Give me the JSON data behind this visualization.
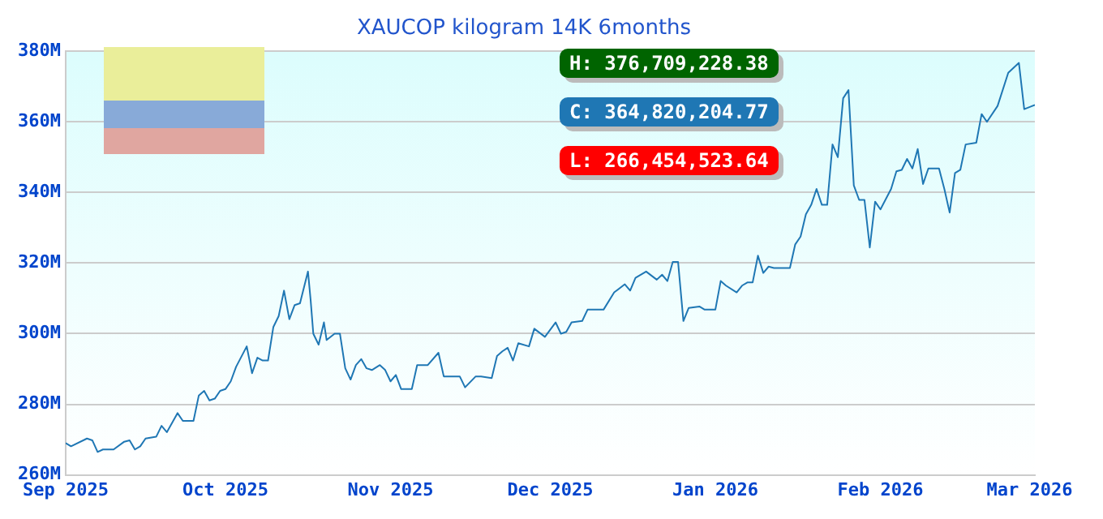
{
  "chart_data": {
    "type": "line",
    "title": "XAUCOP kilogram 14K 6months",
    "x": [
      "2025-09-01",
      "2025-09-02",
      "2025-09-05",
      "2025-09-06",
      "2025-09-07",
      "2025-09-08",
      "2025-09-10",
      "2025-09-12",
      "2025-09-13",
      "2025-09-14",
      "2025-09-15",
      "2025-09-16",
      "2025-09-18",
      "2025-09-19",
      "2025-09-20",
      "2025-09-22",
      "2025-09-23",
      "2025-09-25",
      "2025-09-26",
      "2025-09-27",
      "2025-09-28",
      "2025-09-29",
      "2025-09-30",
      "2025-10-01",
      "2025-10-02",
      "2025-10-03",
      "2025-10-05",
      "2025-10-06",
      "2025-10-07",
      "2025-10-08",
      "2025-10-09",
      "2025-10-10",
      "2025-10-11",
      "2025-10-12",
      "2025-10-13",
      "2025-10-14",
      "2025-10-15",
      "2025-10-16T12:00",
      "2025-10-17",
      "2025-10-17T12:00",
      "2025-10-18T12:00",
      "2025-10-19T12:00",
      "2025-10-20",
      "2025-10-21T12:00",
      "2025-10-22T12:00",
      "2025-10-23T12:00",
      "2025-10-24T12:00",
      "2025-10-25T12:00",
      "2025-10-26T12:00",
      "2025-10-27T12:00",
      "2025-10-28T12:00",
      "2025-10-30",
      "2025-10-31",
      "2025-11-01",
      "2025-11-02",
      "2025-11-03",
      "2025-11-05",
      "2025-11-06",
      "2025-11-08",
      "2025-11-10",
      "2025-11-11",
      "2025-11-14",
      "2025-11-15",
      "2025-11-17",
      "2025-11-18",
      "2025-11-20",
      "2025-11-21",
      "2025-11-22",
      "2025-11-23",
      "2025-11-24",
      "2025-11-25",
      "2025-11-27",
      "2025-11-28",
      "2025-11-30",
      "2025-12-02",
      "2025-12-03",
      "2025-12-04",
      "2025-12-05",
      "2025-12-07",
      "2025-12-08",
      "2025-12-11",
      "2025-12-13",
      "2025-12-15",
      "2025-12-16",
      "2025-12-17",
      "2025-12-19",
      "2025-12-21",
      "2025-12-22",
      "2025-12-23",
      "2025-12-24",
      "2025-12-25",
      "2025-12-26",
      "2025-12-27",
      "2025-12-29",
      "2025-12-30",
      "2026-01-01",
      "2026-01-02",
      "2026-01-03",
      "2026-01-05",
      "2026-01-06",
      "2026-01-07",
      "2026-01-08",
      "2026-01-09",
      "2026-01-10",
      "2026-01-11",
      "2026-01-12",
      "2026-01-15",
      "2026-01-16",
      "2026-01-17",
      "2026-01-18",
      "2026-01-19",
      "2026-01-20",
      "2026-01-21",
      "2026-01-22",
      "2026-01-23",
      "2026-01-24",
      "2026-01-25",
      "2026-01-26",
      "2026-01-27",
      "2026-01-28",
      "2026-01-29",
      "2026-01-30",
      "2026-01-31",
      "2026-02-01",
      "2026-02-03",
      "2026-02-04",
      "2026-02-05",
      "2026-02-06",
      "2026-02-07",
      "2026-02-08",
      "2026-02-09",
      "2026-02-10",
      "2026-02-12",
      "2026-02-13",
      "2026-02-14",
      "2026-02-15",
      "2026-02-16",
      "2026-02-17",
      "2026-02-19",
      "2026-02-20",
      "2026-02-21",
      "2026-02-23",
      "2026-02-25",
      "2026-02-27",
      "2026-02-28",
      "2026-03-02"
    ],
    "series": [
      {
        "color": "#1f77b4",
        "values": [
          269.0,
          268.1,
          270.3,
          269.8,
          266.5,
          267.2,
          267.2,
          269.4,
          269.8,
          267.2,
          268.1,
          270.3,
          270.8,
          273.9,
          272.1,
          277.5,
          275.3,
          275.3,
          282.5,
          283.8,
          281.1,
          281.6,
          283.8,
          284.3,
          286.5,
          290.6,
          296.4,
          288.8,
          293.2,
          292.4,
          292.4,
          301.9,
          305.0,
          312.2,
          304.1,
          308.1,
          308.6,
          317.6,
          309.5,
          300.0,
          296.9,
          303.2,
          298.2,
          300.0,
          300.0,
          290.2,
          287.0,
          291.1,
          292.8,
          290.2,
          289.7,
          291.1,
          289.7,
          286.5,
          288.3,
          284.3,
          284.3,
          291.1,
          291.1,
          294.6,
          287.9,
          287.9,
          284.8,
          287.9,
          287.9,
          287.4,
          293.7,
          295.0,
          296.0,
          292.4,
          297.3,
          296.4,
          301.4,
          299.1,
          303.2,
          300.0,
          300.5,
          303.2,
          303.6,
          306.8,
          306.8,
          311.7,
          314.0,
          312.2,
          315.8,
          317.6,
          315.3,
          316.7,
          314.9,
          320.3,
          320.3,
          303.6,
          307.3,
          307.7,
          306.8,
          306.8,
          314.9,
          313.6,
          311.7,
          313.6,
          314.5,
          314.5,
          322.1,
          317.2,
          319.0,
          318.6,
          318.6,
          325.3,
          327.5,
          333.8,
          336.5,
          341.0,
          336.5,
          336.5,
          353.6,
          350.0,
          366.7,
          369.0,
          342.0,
          337.9,
          337.9,
          324.4,
          337.4,
          335.2,
          341.0,
          346.0,
          346.4,
          349.5,
          346.8,
          352.3,
          342.4,
          346.8,
          346.8,
          341.0,
          334.3,
          345.5,
          346.4,
          353.6,
          354.1,
          362.2,
          360.0,
          364.5,
          373.9,
          376.7,
          363.6,
          364.8
        ]
      }
    ],
    "xlim": [
      "2025-09-01",
      "2026-03-02"
    ],
    "xticks": [
      {
        "value": "2025-09-01",
        "label": "Sep 2025"
      },
      {
        "value": "2025-10-01",
        "label": "Oct 2025"
      },
      {
        "value": "2025-11-01",
        "label": "Nov 2025"
      },
      {
        "value": "2025-12-01",
        "label": "Dec 2025"
      },
      {
        "value": "2026-01-01",
        "label": "Jan 2026"
      },
      {
        "value": "2026-02-01",
        "label": "Feb 2026"
      },
      {
        "value": "2026-03-01",
        "label": "Mar 2026"
      }
    ],
    "ylim": [
      260,
      380
    ],
    "yticks": [
      {
        "value": 260,
        "label": "260M"
      },
      {
        "value": 280,
        "label": "280M"
      },
      {
        "value": 300,
        "label": "300M"
      },
      {
        "value": 320,
        "label": "320M"
      },
      {
        "value": 340,
        "label": "340M"
      },
      {
        "value": 360,
        "label": "360M"
      },
      {
        "value": 380,
        "label": "380M"
      }
    ],
    "grid": "y",
    "legend": false,
    "annotations": [
      "H: 376,709,228.38",
      "C: 364,820,204.77",
      "L: 266,454,523.64"
    ]
  }
}
